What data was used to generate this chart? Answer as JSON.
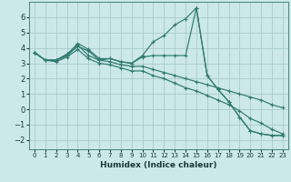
{
  "xlabel": "Humidex (Indice chaleur)",
  "ylabel": "",
  "bg_color": "#cce8e8",
  "grid_color": "#aacccc",
  "line_color": "#2e7a6e",
  "xlim": [
    -0.5,
    23.5
  ],
  "ylim": [
    -2.6,
    7.0
  ],
  "xticks": [
    0,
    1,
    2,
    3,
    4,
    5,
    6,
    7,
    8,
    9,
    10,
    11,
    12,
    13,
    14,
    15,
    16,
    17,
    18,
    19,
    20,
    21,
    22,
    23
  ],
  "yticks": [
    -2,
    -1,
    0,
    1,
    2,
    3,
    4,
    5,
    6
  ],
  "lines": [
    {
      "x": [
        0,
        1,
        2,
        3,
        4,
        5,
        6,
        7,
        8,
        9,
        10,
        11,
        12,
        13,
        14,
        15,
        16,
        17,
        18,
        19,
        20,
        21,
        22,
        23
      ],
      "y": [
        3.7,
        3.2,
        3.2,
        3.5,
        4.3,
        3.9,
        3.3,
        3.3,
        3.1,
        3.0,
        3.5,
        4.4,
        4.8,
        5.5,
        5.9,
        6.6,
        2.2,
        1.3,
        0.5,
        -0.5,
        -1.4,
        -1.6,
        -1.7,
        -1.7
      ]
    },
    {
      "x": [
        0,
        1,
        2,
        3,
        4,
        5,
        6,
        7,
        8,
        9,
        10,
        11,
        12,
        13,
        14,
        15,
        16,
        17,
        18,
        19,
        20,
        21,
        22,
        23
      ],
      "y": [
        3.7,
        3.2,
        3.2,
        3.5,
        4.1,
        3.8,
        3.2,
        3.3,
        3.1,
        3.0,
        3.4,
        3.5,
        3.5,
        3.5,
        3.5,
        6.6,
        2.2,
        1.3,
        0.5,
        -0.5,
        -1.4,
        -1.6,
        -1.7,
        -1.7
      ]
    },
    {
      "x": [
        0,
        1,
        2,
        3,
        4,
        5,
        6,
        7,
        8,
        9,
        10,
        11,
        12,
        13,
        14,
        15,
        16,
        17,
        18,
        19,
        20,
        21,
        22,
        23
      ],
      "y": [
        3.7,
        3.2,
        3.2,
        3.6,
        4.2,
        3.5,
        3.2,
        3.1,
        2.9,
        2.8,
        2.8,
        2.6,
        2.4,
        2.2,
        2.0,
        1.8,
        1.6,
        1.4,
        1.2,
        1.0,
        0.8,
        0.6,
        0.3,
        0.1
      ]
    },
    {
      "x": [
        0,
        1,
        2,
        3,
        4,
        5,
        6,
        7,
        8,
        9,
        10,
        11,
        12,
        13,
        14,
        15,
        16,
        17,
        18,
        19,
        20,
        21,
        22,
        23
      ],
      "y": [
        3.7,
        3.2,
        3.1,
        3.4,
        3.9,
        3.3,
        3.0,
        2.9,
        2.7,
        2.5,
        2.5,
        2.2,
        2.0,
        1.7,
        1.4,
        1.2,
        0.9,
        0.6,
        0.3,
        -0.1,
        -0.6,
        -0.9,
        -1.3,
        -1.6
      ]
    }
  ]
}
